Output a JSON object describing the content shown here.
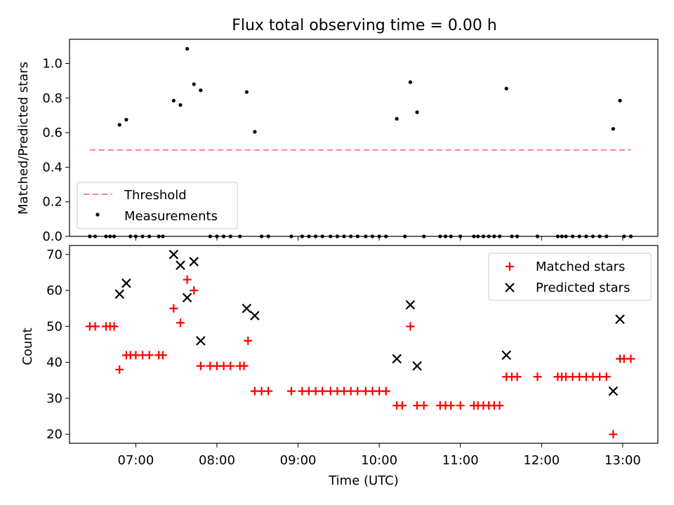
{
  "figure": {
    "title": "Flux total observing time = 0.00 h"
  },
  "chart_data": [
    {
      "type": "scatter",
      "name": "ratio-panel",
      "ylabel": "Matched/Predicted stars",
      "xlabel": "",
      "ylim": [
        0.0,
        1.14
      ],
      "yticks": [
        "0.0",
        "0.2",
        "0.4",
        "0.6",
        "0.8",
        "1.0"
      ],
      "ytick_values": [
        0.0,
        0.2,
        0.4,
        0.6,
        0.8,
        1.0
      ],
      "legend_position": "lower-left",
      "threshold": {
        "name": "Threshold",
        "value": 0.5,
        "x_start": "06:26",
        "x_end": "13:06",
        "color": "#ff7f7f",
        "style": "dashed"
      },
      "measurements": {
        "name": "Measurements",
        "color": "#000000",
        "points": [
          [
            "06:26",
            0.0
          ],
          [
            "06:30",
            0.0
          ],
          [
            "06:38",
            0.0
          ],
          [
            "06:41",
            0.0
          ],
          [
            "06:44",
            0.0
          ],
          [
            "06:48",
            0.645
          ],
          [
            "06:53",
            0.675
          ],
          [
            "06:56",
            0.0
          ],
          [
            "07:00",
            0.0
          ],
          [
            "07:05",
            0.0
          ],
          [
            "07:10",
            0.0
          ],
          [
            "07:17",
            0.0
          ],
          [
            "07:20",
            0.0
          ],
          [
            "07:28",
            0.785
          ],
          [
            "07:33",
            0.76
          ],
          [
            "07:38",
            1.085
          ],
          [
            "07:43",
            0.88
          ],
          [
            "07:48",
            0.845
          ],
          [
            "07:55",
            0.0
          ],
          [
            "08:00",
            0.0
          ],
          [
            "08:05",
            0.0
          ],
          [
            "08:10",
            0.0
          ],
          [
            "08:17",
            0.0
          ],
          [
            "08:22",
            0.835
          ],
          [
            "08:28",
            0.605
          ],
          [
            "08:33",
            0.0
          ],
          [
            "08:38",
            0.0
          ],
          [
            "08:55",
            0.0
          ],
          [
            "09:03",
            0.0
          ],
          [
            "09:08",
            0.0
          ],
          [
            "09:13",
            0.0
          ],
          [
            "09:18",
            0.0
          ],
          [
            "09:24",
            0.0
          ],
          [
            "09:29",
            0.0
          ],
          [
            "09:34",
            0.0
          ],
          [
            "09:39",
            0.0
          ],
          [
            "09:44",
            0.0
          ],
          [
            "09:50",
            0.0
          ],
          [
            "09:55",
            0.0
          ],
          [
            "10:00",
            0.0
          ],
          [
            "10:05",
            0.0
          ],
          [
            "10:13",
            0.68
          ],
          [
            "10:19",
            0.0
          ],
          [
            "10:23",
            0.892
          ],
          [
            "10:28",
            0.718
          ],
          [
            "10:33",
            0.0
          ],
          [
            "10:45",
            0.0
          ],
          [
            "10:49",
            0.0
          ],
          [
            "10:53",
            0.0
          ],
          [
            "11:00",
            0.0
          ],
          [
            "11:10",
            0.0
          ],
          [
            "11:13",
            0.0
          ],
          [
            "11:17",
            0.0
          ],
          [
            "11:21",
            0.0
          ],
          [
            "11:25",
            0.0
          ],
          [
            "11:29",
            0.0
          ],
          [
            "11:34",
            0.855
          ],
          [
            "11:38",
            0.0
          ],
          [
            "11:42",
            0.0
          ],
          [
            "11:57",
            0.0
          ],
          [
            "12:12",
            0.0
          ],
          [
            "12:15",
            0.0
          ],
          [
            "12:18",
            0.0
          ],
          [
            "12:23",
            0.0
          ],
          [
            "12:28",
            0.0
          ],
          [
            "12:33",
            0.0
          ],
          [
            "12:38",
            0.0
          ],
          [
            "12:43",
            0.0
          ],
          [
            "12:48",
            0.0
          ],
          [
            "12:53",
            0.622
          ],
          [
            "12:58",
            0.785
          ],
          [
            "13:01",
            0.0
          ],
          [
            "13:06",
            0.0
          ]
        ]
      }
    },
    {
      "type": "scatter",
      "name": "count-panel",
      "ylabel": "Count",
      "xlabel": "Time (UTC)",
      "ylim": [
        17.5,
        72.5
      ],
      "yticks": [
        "20",
        "30",
        "40",
        "50",
        "60",
        "70"
      ],
      "ytick_values": [
        20,
        30,
        40,
        50,
        60,
        70
      ],
      "xlim": [
        "06:11",
        "13:26"
      ],
      "xticks": [
        "07:00",
        "08:00",
        "09:00",
        "10:00",
        "11:00",
        "12:00",
        "13:00"
      ],
      "legend_position": "upper-right",
      "series": [
        {
          "name": "Matched stars",
          "marker": "plus",
          "color": "#ff0000",
          "points": [
            [
              "06:26",
              50
            ],
            [
              "06:30",
              50
            ],
            [
              "06:38",
              50
            ],
            [
              "06:41",
              50
            ],
            [
              "06:44",
              50
            ],
            [
              "06:48",
              38
            ],
            [
              "06:53",
              42
            ],
            [
              "06:56",
              42
            ],
            [
              "07:00",
              42
            ],
            [
              "07:05",
              42
            ],
            [
              "07:10",
              42
            ],
            [
              "07:17",
              42
            ],
            [
              "07:20",
              42
            ],
            [
              "07:28",
              55
            ],
            [
              "07:33",
              51
            ],
            [
              "07:38",
              63
            ],
            [
              "07:43",
              60
            ],
            [
              "07:48",
              39
            ],
            [
              "07:55",
              39
            ],
            [
              "08:00",
              39
            ],
            [
              "08:05",
              39
            ],
            [
              "08:10",
              39
            ],
            [
              "08:17",
              39
            ],
            [
              "08:20",
              39
            ],
            [
              "08:23",
              46
            ],
            [
              "08:28",
              32
            ],
            [
              "08:33",
              32
            ],
            [
              "08:38",
              32
            ],
            [
              "08:55",
              32
            ],
            [
              "09:03",
              32
            ],
            [
              "09:08",
              32
            ],
            [
              "09:13",
              32
            ],
            [
              "09:18",
              32
            ],
            [
              "09:24",
              32
            ],
            [
              "09:29",
              32
            ],
            [
              "09:34",
              32
            ],
            [
              "09:39",
              32
            ],
            [
              "09:44",
              32
            ],
            [
              "09:50",
              32
            ],
            [
              "09:55",
              32
            ],
            [
              "10:00",
              32
            ],
            [
              "10:05",
              32
            ],
            [
              "10:13",
              28
            ],
            [
              "10:17",
              28
            ],
            [
              "10:23",
              50
            ],
            [
              "10:28",
              28
            ],
            [
              "10:33",
              28
            ],
            [
              "10:45",
              28
            ],
            [
              "10:49",
              28
            ],
            [
              "10:53",
              28
            ],
            [
              "11:00",
              28
            ],
            [
              "11:10",
              28
            ],
            [
              "11:13",
              28
            ],
            [
              "11:17",
              28
            ],
            [
              "11:21",
              28
            ],
            [
              "11:25",
              28
            ],
            [
              "11:29",
              28
            ],
            [
              "11:34",
              36
            ],
            [
              "11:38",
              36
            ],
            [
              "11:42",
              36
            ],
            [
              "11:57",
              36
            ],
            [
              "12:12",
              36
            ],
            [
              "12:15",
              36
            ],
            [
              "12:18",
              36
            ],
            [
              "12:23",
              36
            ],
            [
              "12:28",
              36
            ],
            [
              "12:33",
              36
            ],
            [
              "12:38",
              36
            ],
            [
              "12:43",
              36
            ],
            [
              "12:48",
              36
            ],
            [
              "12:53",
              20
            ],
            [
              "12:58",
              41
            ],
            [
              "13:01",
              41
            ],
            [
              "13:06",
              41
            ]
          ]
        },
        {
          "name": "Predicted stars",
          "marker": "x",
          "color": "#000000",
          "points": [
            [
              "06:48",
              59
            ],
            [
              "06:53",
              62
            ],
            [
              "07:28",
              70
            ],
            [
              "07:33",
              67
            ],
            [
              "07:38",
              58
            ],
            [
              "07:43",
              68
            ],
            [
              "07:48",
              46
            ],
            [
              "08:22",
              55
            ],
            [
              "08:28",
              53
            ],
            [
              "10:13",
              41
            ],
            [
              "10:23",
              56
            ],
            [
              "10:28",
              39
            ],
            [
              "11:34",
              42
            ],
            [
              "12:53",
              32
            ],
            [
              "12:58",
              52
            ]
          ]
        }
      ]
    }
  ]
}
